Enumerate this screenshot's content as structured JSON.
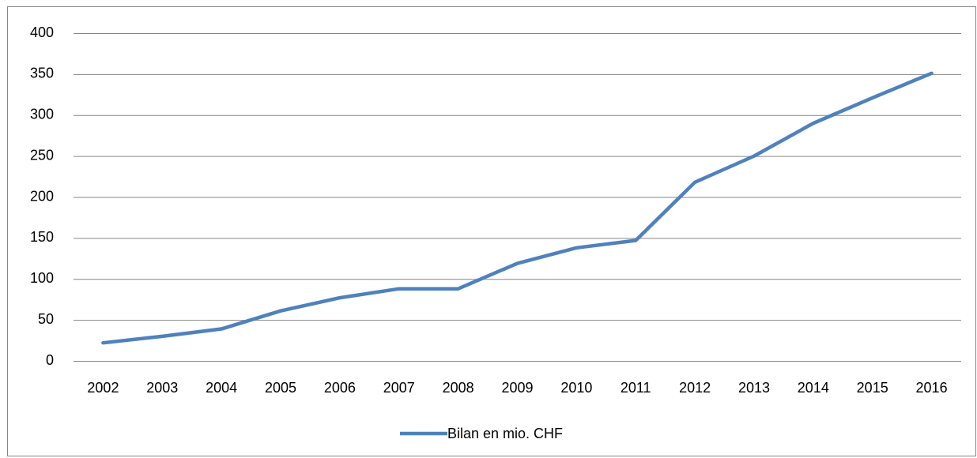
{
  "chart_data": {
    "type": "line",
    "categories": [
      "2002",
      "2003",
      "2004",
      "2005",
      "2006",
      "2007",
      "2008",
      "2009",
      "2010",
      "2011",
      "2012",
      "2013",
      "2014",
      "2015",
      "2016"
    ],
    "series": [
      {
        "name": "Bilan en mio. CHF",
        "color": "#4f81bd",
        "values": [
          22,
          30,
          39,
          61,
          77,
          88,
          88,
          119,
          138,
          147,
          218,
          250,
          290,
          321,
          351
        ]
      }
    ],
    "ylim": [
      0,
      400
    ],
    "yticks": [
      0,
      50,
      100,
      150,
      200,
      250,
      300,
      350,
      400
    ],
    "grid": true,
    "legend": "bottom"
  }
}
